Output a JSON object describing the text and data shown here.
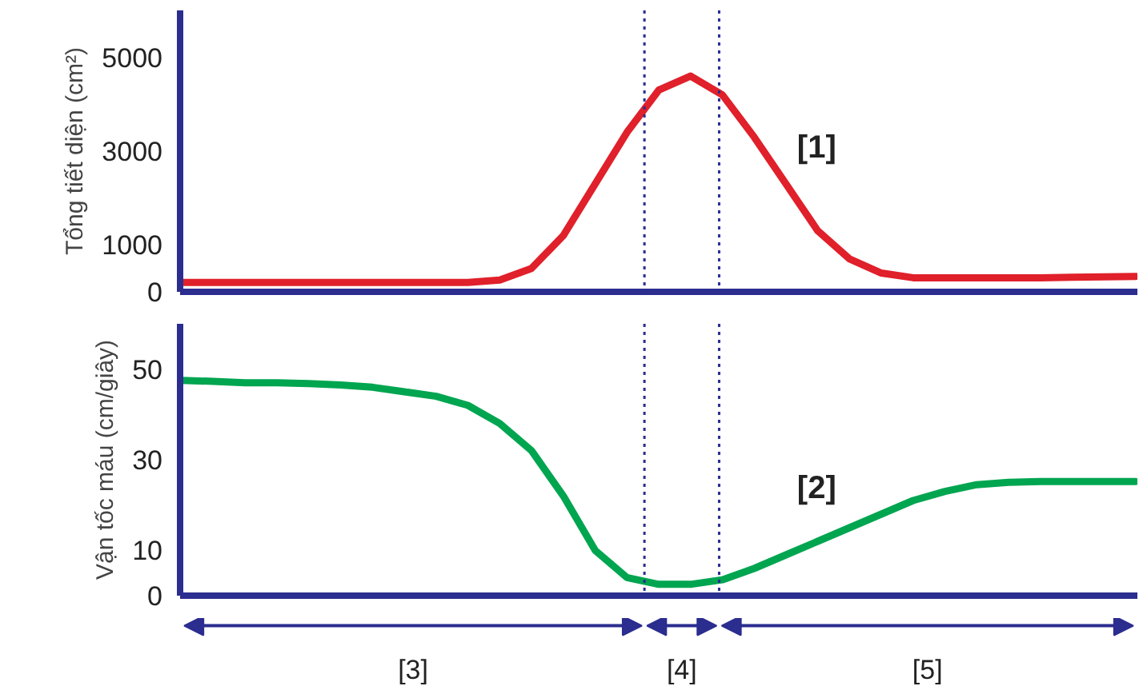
{
  "chart_data": [
    {
      "type": "line",
      "ylabel": "Tổng tiết diện (cm²)",
      "categories": [
        null,
        null,
        null,
        null,
        null,
        null,
        null,
        null,
        null,
        null,
        null,
        null,
        null,
        null,
        null,
        null,
        null,
        null,
        null,
        null,
        null,
        null,
        null,
        null,
        null,
        null,
        null,
        null,
        null,
        null,
        null
      ],
      "series": [
        {
          "color": "#e0202a",
          "values": [
            200,
            200,
            200,
            200,
            200,
            200,
            200,
            200,
            200,
            200,
            250,
            500,
            1200,
            2300,
            3400,
            4300,
            4600,
            4200,
            3300,
            2300,
            1300,
            700,
            400,
            300,
            300,
            300,
            300,
            300,
            310,
            320,
            330
          ]
        }
      ],
      "ylim": [
        0,
        6000
      ],
      "yticks": [
        0,
        1000,
        3000,
        5000
      ],
      "tick_labels": "y",
      "grid": false,
      "annotations": [
        "[1]"
      ]
    },
    {
      "type": "line",
      "ylabel": "Vận tốc máu (cm/giây)",
      "categories": [
        null,
        null,
        null,
        null,
        null,
        null,
        null,
        null,
        null,
        null,
        null,
        null,
        null,
        null,
        null,
        null,
        null,
        null,
        null,
        null,
        null,
        null,
        null,
        null,
        null,
        null,
        null,
        null,
        null,
        null,
        null
      ],
      "series": [
        {
          "color": "#00a550",
          "values": [
            47.5,
            47.3,
            47,
            47,
            46.8,
            46.5,
            46,
            45,
            44,
            42,
            38,
            32,
            22,
            10,
            4,
            2.5,
            2.5,
            3.5,
            6,
            9,
            12,
            15,
            18,
            21,
            23,
            24.5,
            25,
            25.2,
            25.2,
            25.2,
            25.2
          ]
        }
      ],
      "ylim": [
        0,
        60
      ],
      "yticks": [
        0,
        10,
        30,
        50
      ],
      "tick_labels": "y",
      "grid": false,
      "annotations": [
        "[2]",
        "[3]",
        "[4]",
        "[5]"
      ]
    }
  ]
}
